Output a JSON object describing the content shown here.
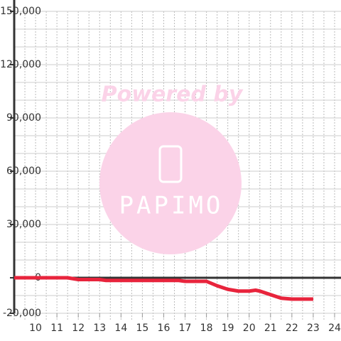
{
  "chart_data": {
    "type": "line",
    "watermark": {
      "line1": "Powered by",
      "line2": "PAPIMO"
    },
    "x": [
      9,
      11.5,
      12,
      13,
      13.3,
      16.7,
      17,
      18,
      18.5,
      19,
      19.5,
      20,
      20.3,
      20.5,
      21,
      21.5,
      22,
      23
    ],
    "series": [
      {
        "color": "#e8243c",
        "values": [
          0,
          0,
          -1000,
          -1000,
          -1500,
          -1500,
          -2000,
          -2000,
          -4500,
          -6500,
          -7500,
          -7500,
          -7000,
          -7500,
          -9500,
          -11500,
          -12000,
          -12000
        ]
      }
    ],
    "xlim": [
      9,
      24.3
    ],
    "xticks": [
      10,
      11,
      12,
      13,
      14,
      15,
      16,
      17,
      18,
      19,
      20,
      21,
      22,
      23,
      24
    ],
    "xgrid_step": 0.5,
    "ylim": [
      -20000,
      150000
    ],
    "yticks": [
      {
        "value": 150000,
        "label": "150,000"
      },
      {
        "value": 120000,
        "label": "120,000"
      },
      {
        "value": 90000,
        "label": "90,000"
      },
      {
        "value": 60000,
        "label": "60,000"
      },
      {
        "value": 30000,
        "label": "30,000"
      },
      0,
      {
        "value": -20000,
        "label": "-20,000"
      }
    ],
    "ygrid_step": 10000,
    "grid": true
  }
}
